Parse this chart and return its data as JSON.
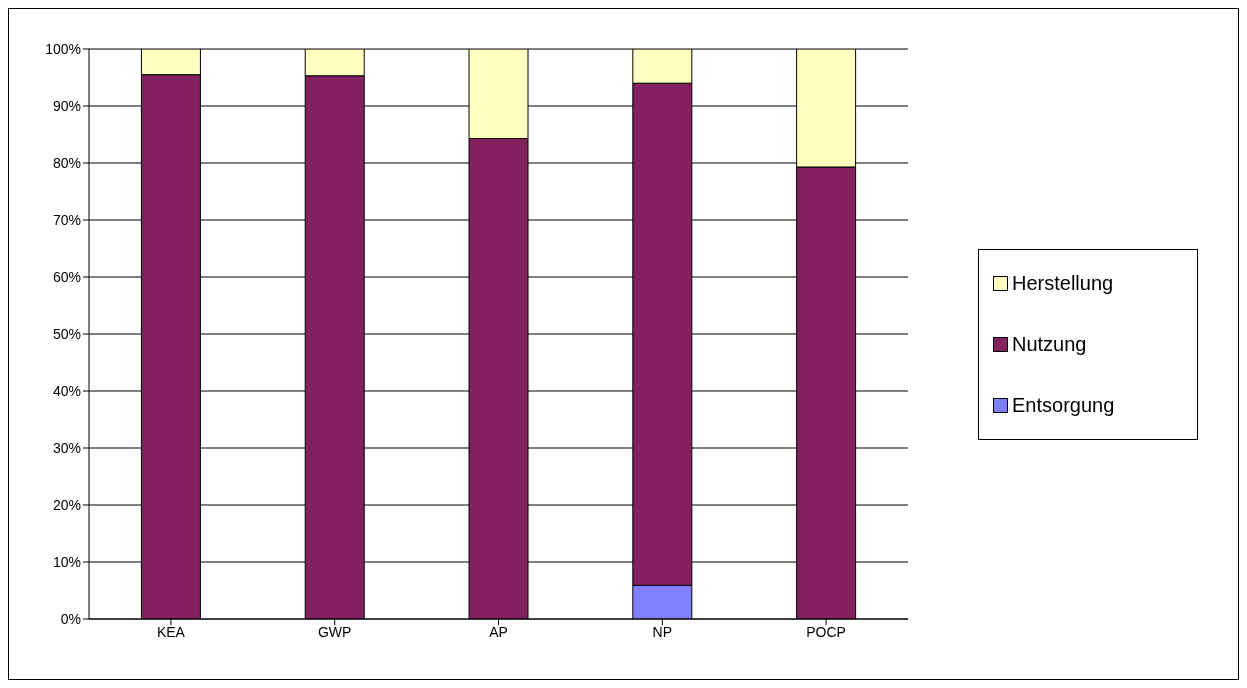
{
  "chart_data": {
    "type": "bar",
    "stacked": true,
    "categories": [
      "KEA",
      "GWP",
      "AP",
      "NP",
      "POCP"
    ],
    "series": [
      {
        "name": "Entsorgung",
        "color": "#8080ff",
        "values": [
          null,
          null,
          null,
          5.9,
          null
        ]
      },
      {
        "name": "Nutzung",
        "color": "#822060",
        "values": [
          95.5,
          95.3,
          84.3,
          88.1,
          79.3
        ]
      },
      {
        "name": "Herstellung",
        "color": "#ffffc0",
        "values": [
          4.5,
          4.7,
          15.7,
          6.0,
          20.7
        ]
      }
    ],
    "ylim": [
      0,
      100
    ],
    "yticks": [
      {
        "value": 0,
        "label": "0%"
      },
      {
        "value": 10,
        "label": "10%"
      },
      {
        "value": 20,
        "label": "20%"
      },
      {
        "value": 30,
        "label": "30%"
      },
      {
        "value": 40,
        "label": "40%"
      },
      {
        "value": 50,
        "label": "50%"
      },
      {
        "value": 60,
        "label": "60%"
      },
      {
        "value": 70,
        "label": "70%"
      },
      {
        "value": 80,
        "label": "80%"
      },
      {
        "value": 90,
        "label": "90%"
      },
      {
        "value": 100,
        "label": "100%"
      }
    ],
    "grid": "y",
    "legend": "right"
  }
}
